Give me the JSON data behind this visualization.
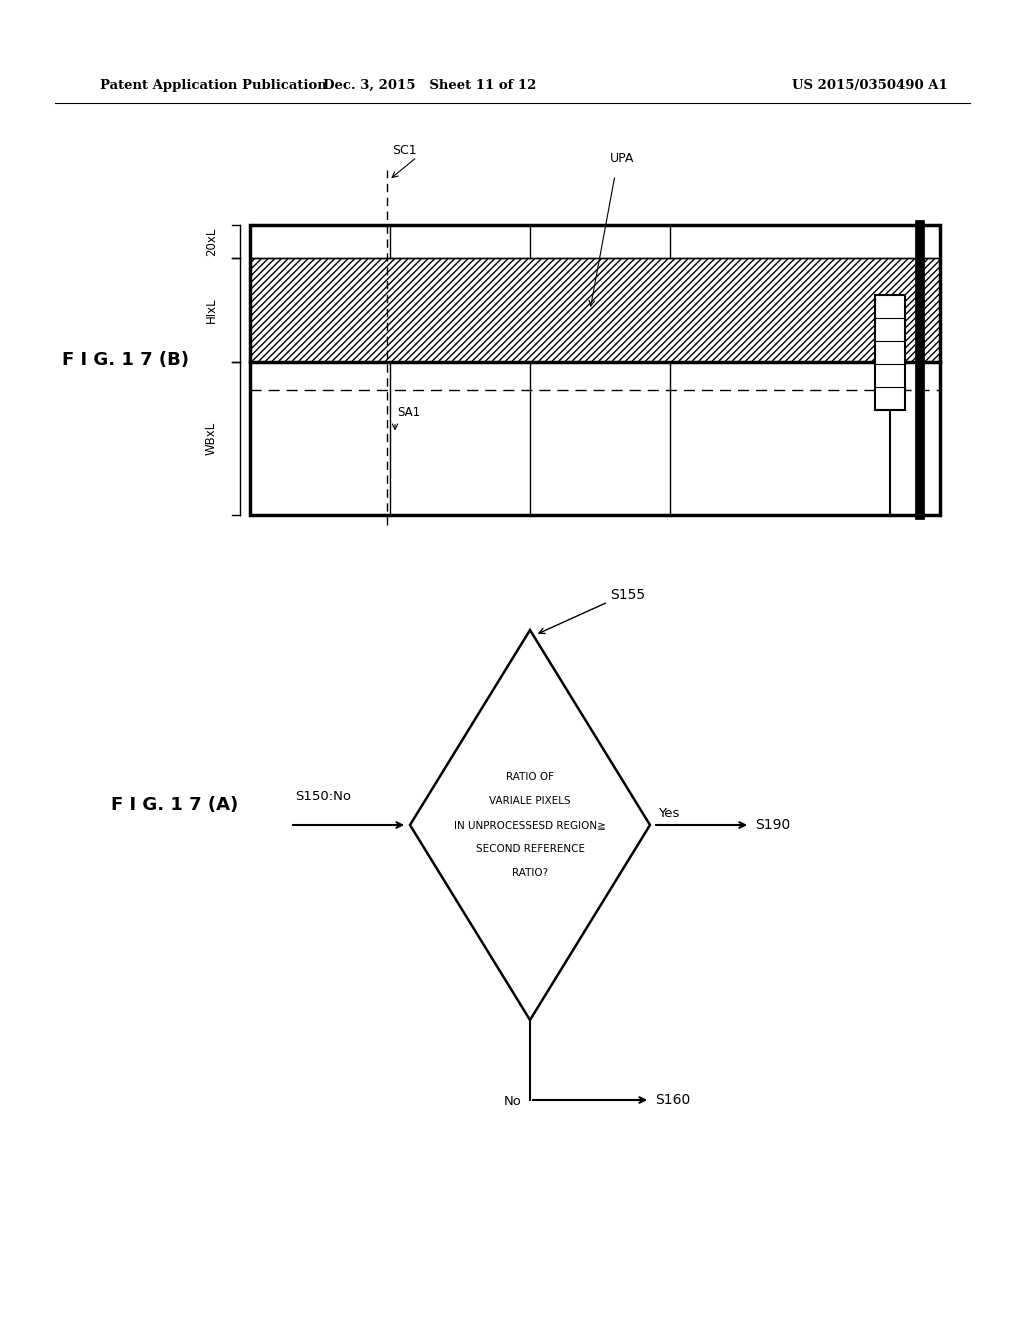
{
  "bg_color": "#ffffff",
  "header_left": "Patent Application Publication",
  "header_mid": "Dec. 3, 2015   Sheet 11 of 12",
  "header_right": "US 2015/0350490 A1",
  "fig_b_label": "F I G. 1 7 (B)",
  "fig_a_label": "F I G. 1 7 (A)",
  "diamond_lines": [
    "RATIO OF",
    "VARIALE PIXELS",
    "IN UNPROCESSESD REGION≧",
    "SECOND REFERENCE",
    "RATIO?"
  ]
}
